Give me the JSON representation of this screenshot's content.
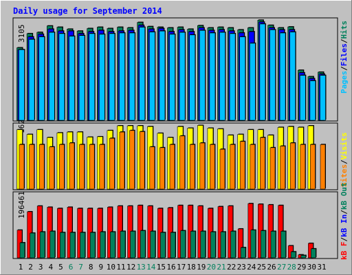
{
  "title": "Daily usage for September 2014",
  "colors": {
    "background": "#c0c0c0",
    "plot_bg": "#c0c0c0",
    "title": "#0000ff",
    "hits": "#00805c",
    "files": "#0000ff",
    "pages": "#00c0ff",
    "visits": "#ffff00",
    "sites": "#ff8000",
    "kb_out": "#00805c",
    "kb_in": "#ff0000",
    "weekend_day_label": "#00805c",
    "weekday_label": "#000000"
  },
  "chart_data": [
    {
      "type": "bar",
      "panel": "hits-files-pages",
      "ymax_label": "3105",
      "ylim": [
        0,
        3105
      ],
      "legend": [
        "Pages",
        "/",
        "Files",
        "/",
        "Hits"
      ],
      "categories": [
        "1",
        "2",
        "3",
        "4",
        "5",
        "6",
        "7",
        "8",
        "9",
        "10",
        "11",
        "12",
        "13",
        "14",
        "15",
        "16",
        "17",
        "18",
        "19",
        "20",
        "21",
        "22",
        "23",
        "24",
        "25",
        "26",
        "27",
        "28",
        "29",
        "30",
        "31"
      ],
      "weekend_days": [
        "6",
        "7",
        "13",
        "14",
        "20",
        "21",
        "27",
        "28"
      ],
      "series": [
        {
          "name": "Hits",
          "values": [
            2260,
            2700,
            2740,
            2940,
            2900,
            2840,
            2780,
            2860,
            2900,
            2860,
            2900,
            2880,
            3050,
            2920,
            2900,
            2880,
            2900,
            2840,
            2950,
            2880,
            2900,
            2880,
            2820,
            2880,
            3120,
            2960,
            2880,
            2910,
            1560,
            1360,
            1500
          ]
        },
        {
          "name": "Files",
          "values": [
            2200,
            2600,
            2680,
            2840,
            2780,
            2780,
            2700,
            2760,
            2800,
            2760,
            2780,
            2800,
            2960,
            2840,
            2860,
            2760,
            2820,
            2760,
            2880,
            2800,
            2820,
            2780,
            2720,
            2760,
            3060,
            2880,
            2820,
            2820,
            1480,
            1300,
            1440
          ]
        },
        {
          "name": "Pages",
          "values": [
            2200,
            2520,
            2600,
            2740,
            2700,
            2620,
            2640,
            2700,
            2680,
            2700,
            2720,
            2720,
            2900,
            2750,
            2780,
            2680,
            2740,
            2660,
            2800,
            2720,
            2740,
            2700,
            2600,
            2400,
            3000,
            2820,
            2720,
            2750,
            1400,
            1230,
            1400
          ]
        }
      ]
    },
    {
      "type": "bar",
      "panel": "visits-sites",
      "ymax_label": "162",
      "ylim": [
        0,
        162
      ],
      "legend": [
        "Sites",
        "/",
        "Visits"
      ],
      "categories": [
        "1",
        "2",
        "3",
        "4",
        "5",
        "6",
        "7",
        "8",
        "9",
        "10",
        "11",
        "12",
        "13",
        "14",
        "15",
        "16",
        "17",
        "18",
        "19",
        "20",
        "21",
        "22",
        "23",
        "24",
        "25",
        "26",
        "27",
        "28",
        "29",
        "30",
        "31"
      ],
      "series": [
        {
          "name": "Visits",
          "values": [
            152,
            140,
            152,
            132,
            144,
            146,
            146,
            133,
            134,
            150,
            162,
            162,
            162,
            160,
            143,
            132,
            160,
            156,
            163,
            156,
            154,
            138,
            140,
            152,
            152,
            138,
            158,
            160,
            158,
            162,
            0
          ]
        },
        {
          "name": "Sites",
          "values": [
            114,
            114,
            114,
            108,
            114,
            118,
            114,
            114,
            114,
            130,
            146,
            150,
            147,
            108,
            106,
            114,
            136,
            114,
            118,
            114,
            102,
            114,
            122,
            114,
            132,
            106,
            110,
            118,
            114,
            114,
            114
          ]
        }
      ]
    },
    {
      "type": "bar",
      "panel": "kbin-kbout",
      "ymax_label": "196461",
      "ylim": [
        0,
        210000
      ],
      "legend": [
        "kB F",
        "/",
        "kB In",
        "/",
        "kB Out"
      ],
      "categories": [
        "1",
        "2",
        "3",
        "4",
        "5",
        "6",
        "7",
        "8",
        "9",
        "10",
        "11",
        "12",
        "13",
        "14",
        "15",
        "16",
        "17",
        "18",
        "19",
        "20",
        "21",
        "22",
        "23",
        "24",
        "25",
        "26",
        "27",
        "28",
        "29",
        "30",
        "31"
      ],
      "series": [
        {
          "name": "kB In",
          "values": [
            92000,
            153000,
            172000,
            168000,
            164000,
            168000,
            164000,
            164000,
            164000,
            168000,
            172000,
            172000,
            174000,
            172000,
            164000,
            166000,
            174000,
            174000,
            172000,
            164000,
            170000,
            172000,
            96000,
            180000,
            178000,
            176000,
            174000,
            40000,
            10000,
            48000,
            0
          ]
        },
        {
          "name": "kB Out",
          "values": [
            50000,
            82000,
            86000,
            88000,
            84000,
            84000,
            84000,
            84000,
            86000,
            86000,
            88000,
            88000,
            90000,
            88000,
            84000,
            84000,
            90000,
            88000,
            88000,
            86000,
            86000,
            88000,
            34000,
            92000,
            90000,
            88000,
            88000,
            20000,
            8000,
            30000,
            0
          ]
        }
      ]
    }
  ]
}
